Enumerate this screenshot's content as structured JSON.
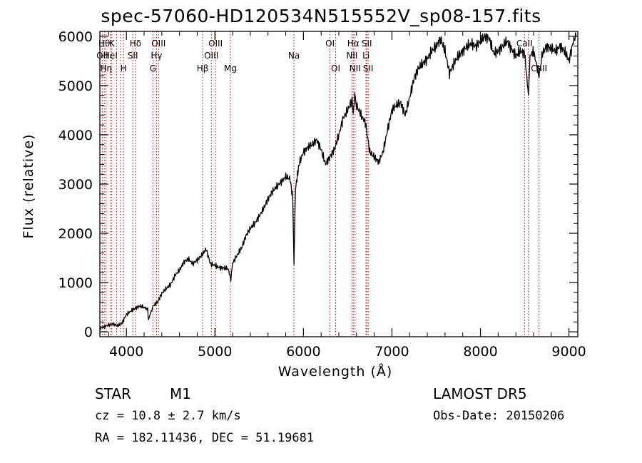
{
  "chart_data": {
    "type": "line",
    "title": "spec-57060-HD120534N515552V_sp08-157.fits",
    "xlabel": "Wavelength (Å)",
    "ylabel": "Flux (relative)",
    "xlim": [
      3700,
      9100
    ],
    "ylim": [
      -100,
      6100
    ],
    "xticks": [
      4000,
      5000,
      6000,
      7000,
      8000,
      9000
    ],
    "yticks": [
      0,
      1000,
      2000,
      3000,
      4000,
      5000,
      6000
    ],
    "series": [
      {
        "x": [
          3700,
          3750,
          3800,
          3850,
          3900,
          3950,
          4000,
          4050,
          4100,
          4150,
          4200,
          4240,
          4250,
          4280,
          4300,
          4350,
          4400,
          4450,
          4500,
          4550,
          4600,
          4650,
          4700,
          4750,
          4800,
          4850,
          4900,
          4950,
          5000,
          5050,
          5100,
          5150,
          5180,
          5200,
          5250,
          5300,
          5350,
          5400,
          5450,
          5500,
          5550,
          5600,
          5650,
          5700,
          5750,
          5800,
          5850,
          5880,
          5893,
          5910,
          5950,
          6000,
          6050,
          6100,
          6150,
          6200,
          6250,
          6300,
          6350,
          6400,
          6450,
          6500,
          6550,
          6563,
          6580,
          6600,
          6650,
          6700,
          6750,
          6800,
          6850,
          6900,
          6950,
          7000,
          7050,
          7100,
          7150,
          7200,
          7250,
          7300,
          7350,
          7400,
          7450,
          7500,
          7550,
          7600,
          7650,
          7700,
          7750,
          7800,
          7850,
          7900,
          7950,
          8000,
          8050,
          8100,
          8150,
          8200,
          8250,
          8300,
          8350,
          8400,
          8450,
          8500,
          8542,
          8560,
          8600,
          8662,
          8700,
          8750,
          8800,
          8850,
          8900,
          8950,
          9000,
          9050,
          9080
        ],
        "y": [
          80,
          100,
          140,
          160,
          120,
          180,
          350,
          420,
          480,
          520,
          500,
          450,
          250,
          420,
          520,
          600,
          780,
          880,
          960,
          1150,
          1250,
          1420,
          1480,
          1380,
          1460,
          1550,
          1680,
          1380,
          1350,
          1300,
          1300,
          1280,
          1050,
          1400,
          1550,
          1700,
          1950,
          2100,
          2200,
          2350,
          2500,
          2700,
          2850,
          2950,
          3050,
          3150,
          3100,
          2700,
          1350,
          2900,
          3400,
          3650,
          3750,
          3800,
          3900,
          3700,
          3400,
          3550,
          3700,
          4000,
          4350,
          4500,
          4700,
          4450,
          4800,
          4600,
          4400,
          4250,
          3650,
          3550,
          3450,
          3650,
          4100,
          4500,
          4600,
          4650,
          4400,
          4750,
          5150,
          5350,
          5450,
          5550,
          5700,
          5800,
          5950,
          5700,
          5250,
          5450,
          5600,
          5700,
          5800,
          5850,
          5800,
          5900,
          6000,
          5950,
          5650,
          5700,
          5800,
          5900,
          5750,
          5600,
          5700,
          5650,
          4800,
          5600,
          5700,
          5200,
          5650,
          5800,
          5750,
          5700,
          5800,
          5700,
          5500,
          5900,
          6000
        ]
      }
    ],
    "lines": [
      {
        "w": 3750,
        "label": "Hθ",
        "row": 0
      },
      {
        "w": 3727,
        "label": "OII",
        "row": 1
      },
      {
        "w": 3770,
        "label": "Hη",
        "row": 2
      },
      {
        "w": 3835,
        "label": "K",
        "row": 0
      },
      {
        "w": 3820,
        "label": "HeI",
        "row": 1
      },
      {
        "w": 3889,
        "label": "",
        "row": 3
      },
      {
        "w": 3933,
        "label": "",
        "row": 3
      },
      {
        "w": 3968,
        "label": "H",
        "row": 2
      },
      {
        "w": 4072,
        "label": "SII",
        "row": 1
      },
      {
        "w": 4102,
        "label": "Hδ",
        "row": 0
      },
      {
        "w": 4300,
        "label": "G",
        "row": 2
      },
      {
        "w": 4340,
        "label": "Hγ",
        "row": 1
      },
      {
        "w": 4363,
        "label": "OIII",
        "row": 0
      },
      {
        "w": 4861,
        "label": "Hβ",
        "row": 2
      },
      {
        "w": 4959,
        "label": "OIII",
        "row": 1
      },
      {
        "w": 5007,
        "label": "OIII",
        "row": 0
      },
      {
        "w": 5175,
        "label": "Mg",
        "row": 2
      },
      {
        "w": 5893,
        "label": "Na",
        "row": 1
      },
      {
        "w": 6300,
        "label": "OI",
        "row": 0
      },
      {
        "w": 6364,
        "label": "OI",
        "row": 2
      },
      {
        "w": 6548,
        "label": "NII",
        "row": 1
      },
      {
        "w": 6563,
        "label": "Hα",
        "row": 0
      },
      {
        "w": 6583,
        "label": "NII",
        "row": 2
      },
      {
        "w": 6707,
        "label": "Li",
        "row": 1
      },
      {
        "w": 6716,
        "label": "SII",
        "row": 0
      },
      {
        "w": 6731,
        "label": "SII",
        "row": 2
      },
      {
        "w": 8498,
        "label": "CaII",
        "row": 0
      },
      {
        "w": 8542,
        "label": "",
        "row": 3
      },
      {
        "w": 8662,
        "label": "CaII",
        "row": 2
      }
    ]
  },
  "info": {
    "class": "STAR",
    "subclass": "M1",
    "survey": "LAMOST DR5",
    "cz": "cz = 10.8 ± 2.7 km/s",
    "obsdate": "Obs-Date: 20150206",
    "radec": "RA = 182.11436, DEC =  51.19681"
  },
  "colors": {
    "spectrum": "#000000",
    "lines": "#c00000"
  }
}
